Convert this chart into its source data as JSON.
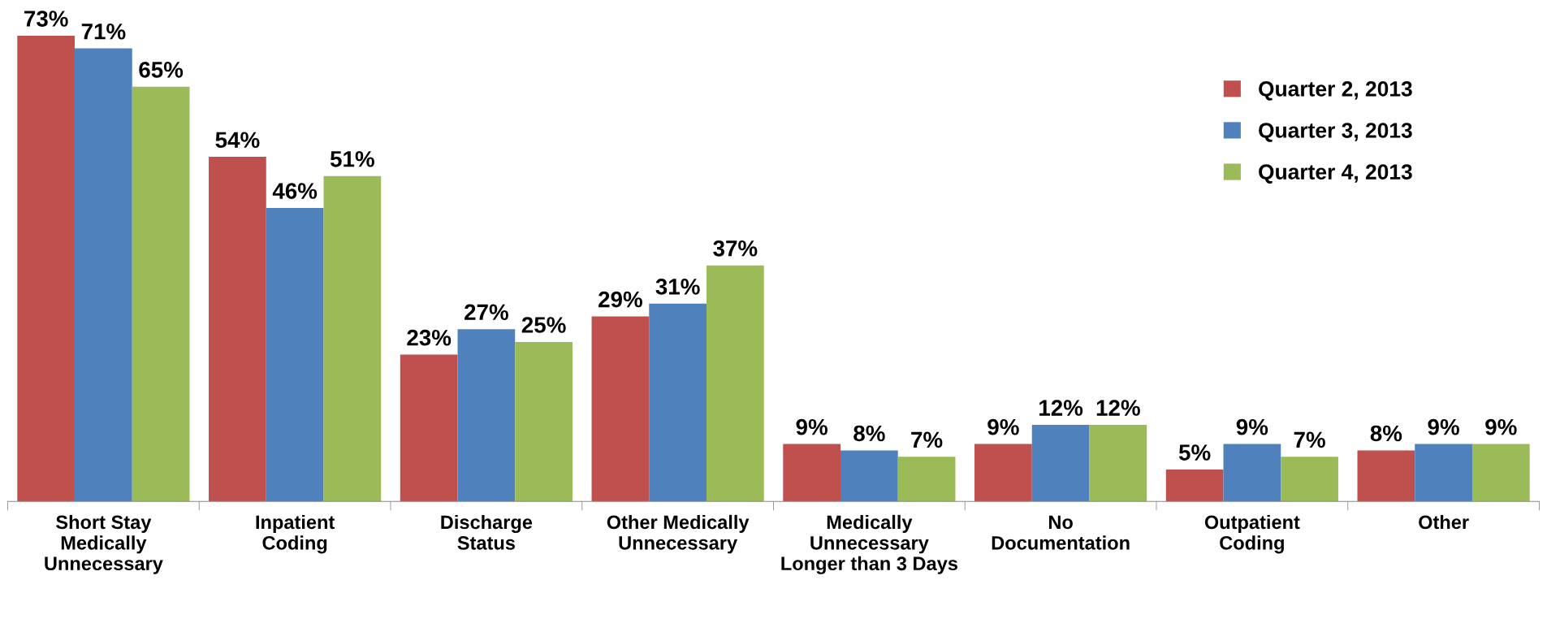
{
  "chart_data": {
    "type": "bar",
    "categories": [
      "Short Stay\nMedically\nUnnecessary",
      "Inpatient\nCoding",
      "Discharge\nStatus",
      "Other Medically\nUnnecessary",
      "Medically\nUnnecessary\nLonger than 3 Days",
      "No\nDocumentation",
      "Outpatient\nCoding",
      "Other"
    ],
    "series": [
      {
        "name": "Quarter 2, 2013",
        "color": "#c0504d",
        "values": [
          73,
          54,
          23,
          29,
          9,
          9,
          5,
          8
        ],
        "value_labels": [
          "73%",
          "54%",
          "23%",
          "29%",
          "9%",
          "9%",
          "5%",
          "8%"
        ]
      },
      {
        "name": "Quarter 3, 2013",
        "color": "#4f81bd",
        "values": [
          71,
          46,
          27,
          31,
          8,
          12,
          9,
          9
        ],
        "value_labels": [
          "71%",
          "46%",
          "27%",
          "31%",
          "8%",
          "12%",
          "9%",
          "9%"
        ]
      },
      {
        "name": "Quarter 4, 2013",
        "color": "#9bbb59",
        "values": [
          65,
          51,
          25,
          37,
          7,
          12,
          7,
          9
        ],
        "value_labels": [
          "65%",
          "51%",
          "25%",
          "37%",
          "7%",
          "12%",
          "7%",
          "9%"
        ]
      }
    ],
    "legend": "top right",
    "grid": false
  }
}
